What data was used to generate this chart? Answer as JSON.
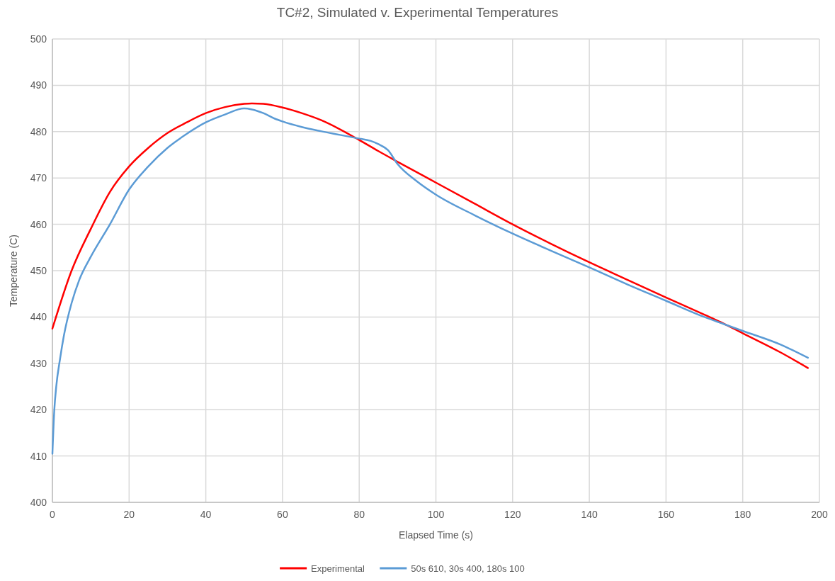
{
  "chart_data": {
    "type": "line",
    "title": "TC#2, Simulated v. Experimental Temperatures",
    "xlabel": "Elapsed Time (s)",
    "ylabel": "Temperature (C)",
    "xlim": [
      0,
      200
    ],
    "xticks": [
      0,
      20,
      40,
      60,
      80,
      100,
      120,
      140,
      160,
      180,
      200
    ],
    "ylim": [
      400,
      500
    ],
    "yticks": [
      400,
      410,
      420,
      430,
      440,
      450,
      460,
      470,
      480,
      490,
      500
    ],
    "grid": true,
    "legend": "bottom",
    "marker": "none",
    "line_style": "solid",
    "series": [
      {
        "name": "Experimental",
        "color": "#ff0000",
        "x": [
          0,
          5,
          10,
          15,
          20,
          25,
          30,
          35,
          40,
          45,
          50,
          52,
          55,
          60,
          65,
          70,
          75,
          80,
          85,
          90,
          100,
          110,
          120,
          130,
          140,
          150,
          160,
          170,
          175,
          180,
          190,
          197
        ],
        "values": [
          437.5,
          450,
          459,
          467,
          472.5,
          476.5,
          479.7,
          482,
          484,
          485.3,
          486,
          486.1,
          486,
          485.2,
          484,
          482.5,
          480.5,
          478.2,
          475.8,
          473.5,
          469,
          464.5,
          460,
          455.8,
          451.8,
          448,
          444.2,
          440.5,
          438.6,
          436.5,
          432.3,
          429
        ]
      },
      {
        "name": "50s 610, 30s 400, 180s 100",
        "color": "#5b9bd5",
        "x": [
          0,
          0.5,
          1,
          2,
          3,
          5,
          7,
          10,
          15,
          20,
          25,
          30,
          35,
          40,
          45,
          50,
          52,
          55,
          58,
          60,
          65,
          70,
          75,
          80,
          83,
          85,
          87.5,
          90,
          95,
          100,
          110,
          120,
          130,
          140,
          150,
          160,
          170,
          175,
          180,
          190,
          197
        ],
        "values": [
          410.5,
          420,
          425,
          431,
          436,
          443,
          448,
          453,
          460,
          467.5,
          472.5,
          476.5,
          479.5,
          482,
          483.7,
          485,
          484.8,
          484,
          482.8,
          482.2,
          481,
          480.1,
          479.3,
          478.5,
          478,
          477.3,
          476,
          473,
          469.3,
          466.4,
          462,
          458,
          454.3,
          450.7,
          447,
          443.5,
          440,
          438.5,
          437,
          434,
          431.2
        ]
      }
    ]
  }
}
